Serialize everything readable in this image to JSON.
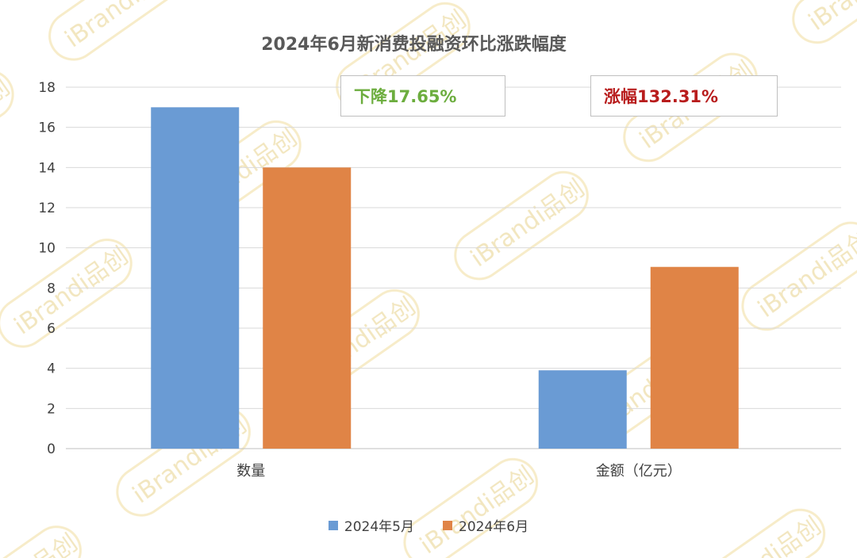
{
  "chart_data": {
    "type": "bar",
    "title": "2024年6月新消费投融资环比涨跌幅度",
    "categories": [
      "数量",
      "金额（亿元）"
    ],
    "series": [
      {
        "name": "2024年5月",
        "values": [
          17,
          3.9
        ],
        "color": "#6a9bd4"
      },
      {
        "name": "2024年6月",
        "values": [
          14,
          9.05
        ],
        "color": "#e08446"
      }
    ],
    "ylim": [
      0,
      18
    ],
    "yticks": [
      "0",
      "2",
      "4",
      "6",
      "8",
      "10",
      "12",
      "14",
      "16",
      "18"
    ],
    "grid": true,
    "legend_position": "bottom",
    "annotations": [
      {
        "text": "下降17.65%",
        "color": "#6cad3e"
      },
      {
        "text": "涨幅132.31%",
        "color": "#b81c1c"
      }
    ]
  },
  "watermark": "iBrandi品创"
}
